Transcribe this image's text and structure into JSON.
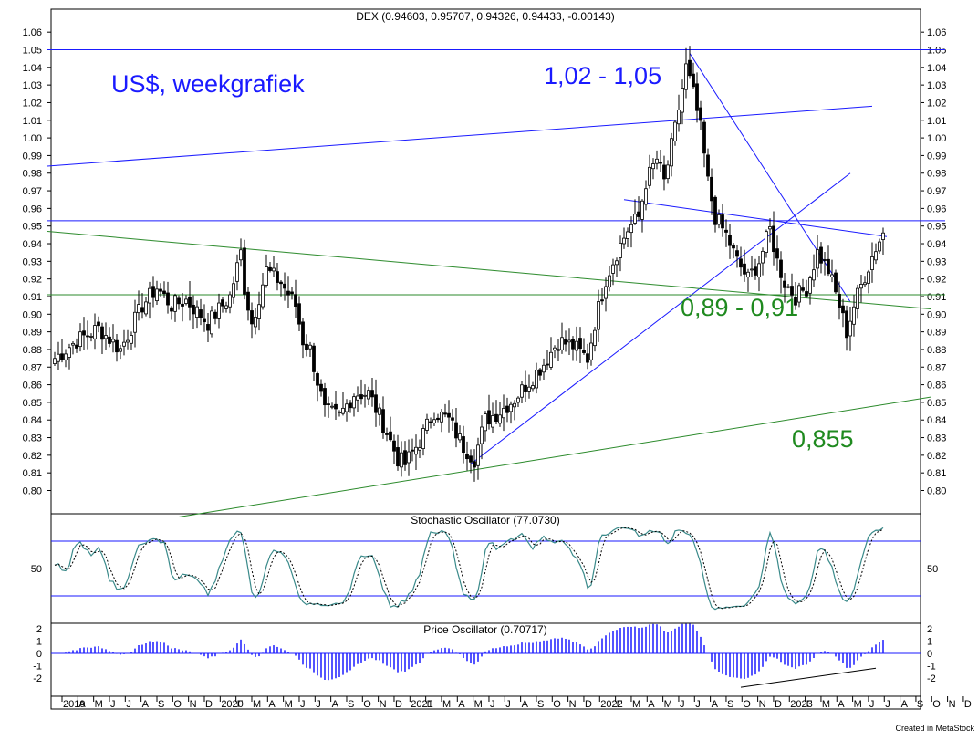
{
  "chart_data": {
    "type": "candlestick",
    "main": {
      "title": "DEX (0.94603, 0.95707, 0.94326, 0.94433, -0.00143)",
      "ylim": [
        0.785,
        1.065
      ],
      "yticks": [
        "1.06",
        "1.05",
        "1.04",
        "1.03",
        "1.02",
        "1.01",
        "1.00",
        "0.99",
        "0.98",
        "0.97",
        "0.96",
        "0.95",
        "0.94",
        "0.93",
        "0.92",
        "0.91",
        "0.90",
        "0.89",
        "0.88",
        "0.87",
        "0.86",
        "0.85",
        "0.84",
        "0.83",
        "0.82",
        "0.81",
        "0.80"
      ],
      "annotations": {
        "note": "US$, weekgrafiek",
        "top_target": "1,02 - 1,05",
        "support_zone": "0,89 - 0,91",
        "low_target": "0,855"
      },
      "weekly_close_anchors": [
        [
          0,
          0.875
        ],
        [
          6,
          0.885
        ],
        [
          12,
          0.892
        ],
        [
          18,
          0.88
        ],
        [
          24,
          0.905
        ],
        [
          28,
          0.915
        ],
        [
          32,
          0.905
        ],
        [
          36,
          0.908
        ],
        [
          42,
          0.895
        ],
        [
          48,
          0.91
        ],
        [
          51,
          0.935
        ],
        [
          52,
          0.915
        ],
        [
          54,
          0.895
        ],
        [
          58,
          0.925
        ],
        [
          62,
          0.918
        ],
        [
          66,
          0.905
        ],
        [
          68,
          0.885
        ],
        [
          70,
          0.88
        ],
        [
          72,
          0.862
        ],
        [
          74,
          0.845
        ],
        [
          78,
          0.842
        ],
        [
          82,
          0.855
        ],
        [
          86,
          0.855
        ],
        [
          90,
          0.838
        ],
        [
          94,
          0.818
        ],
        [
          96,
          0.815
        ],
        [
          100,
          0.828
        ],
        [
          104,
          0.845
        ],
        [
          108,
          0.84
        ],
        [
          112,
          0.825
        ],
        [
          115,
          0.818
        ],
        [
          118,
          0.84
        ],
        [
          122,
          0.845
        ],
        [
          126,
          0.852
        ],
        [
          130,
          0.862
        ],
        [
          134,
          0.872
        ],
        [
          138,
          0.885
        ],
        [
          142,
          0.882
        ],
        [
          146,
          0.875
        ],
        [
          148,
          0.895
        ],
        [
          151,
          0.92
        ],
        [
          154,
          0.935
        ],
        [
          157,
          0.948
        ],
        [
          160,
          0.955
        ],
        [
          162,
          0.975
        ],
        [
          165,
          0.988
        ],
        [
          167,
          0.975
        ],
        [
          170,
          1.005
        ],
        [
          173,
          1.04
        ],
        [
          175,
          1.025
        ],
        [
          177,
          1.005
        ],
        [
          179,
          0.975
        ],
        [
          181,
          0.955
        ],
        [
          184,
          0.945
        ],
        [
          187,
          0.93
        ],
        [
          190,
          0.92
        ],
        [
          193,
          0.93
        ],
        [
          196,
          0.948
        ],
        [
          198,
          0.93
        ],
        [
          200,
          0.918
        ],
        [
          203,
          0.91
        ],
        [
          206,
          0.915
        ],
        [
          209,
          0.935
        ],
        [
          212,
          0.925
        ],
        [
          215,
          0.905
        ],
        [
          217,
          0.89
        ],
        [
          219,
          0.905
        ],
        [
          222,
          0.922
        ],
        [
          225,
          0.938
        ],
        [
          227,
          0.946
        ]
      ],
      "lines": [
        {
          "name": "blue-channel-top",
          "color": "#1a1aff",
          "from": [
            -2,
            0.984
          ],
          "to": [
            224,
            1.018
          ]
        },
        {
          "name": "resistance-1050",
          "color": "#1a1aff",
          "from": [
            -2,
            1.05
          ],
          "to": [
            244,
            1.05
          ]
        },
        {
          "name": "resistance-953",
          "color": "#1a1aff",
          "from": [
            -2,
            0.953
          ],
          "to": [
            244,
            0.953
          ]
        },
        {
          "name": "blue-trend-up",
          "color": "#1a1aff",
          "from": [
            114,
            0.815
          ],
          "to": [
            218,
            0.98
          ]
        },
        {
          "name": "blue-trend-down",
          "color": "#1a1aff",
          "from": [
            174,
            1.048
          ],
          "to": [
            218,
            0.907
          ]
        },
        {
          "name": "blue-descending",
          "color": "#1a1aff",
          "from": [
            156,
            0.965
          ],
          "to": [
            228,
            0.944
          ]
        },
        {
          "name": "green-support-910",
          "color": "#2b8a2b",
          "from": [
            -2,
            0.911
          ],
          "to": [
            244,
            0.911
          ]
        },
        {
          "name": "green-descending",
          "color": "#2b8a2b",
          "from": [
            -2,
            0.947
          ],
          "to": [
            240,
            0.903
          ]
        },
        {
          "name": "green-ascending",
          "color": "#2b8a2b",
          "from": [
            34,
            0.785
          ],
          "to": [
            240,
            0.853
          ]
        }
      ]
    },
    "stochastic": {
      "title": "Stochastic Oscillator (77.0730)",
      "ylabel_tick": "50",
      "levels": [
        80,
        20
      ]
    },
    "price_osc": {
      "title": "Price Oscillator (0.70717)",
      "yticks": [
        "2",
        "1",
        "0",
        "-1",
        "-2"
      ]
    },
    "x_axis": {
      "labels": [
        "2019",
        "A",
        "M",
        "J",
        "J",
        "A",
        "S",
        "O",
        "N",
        "D",
        "2020",
        "F",
        "M",
        "A",
        "M",
        "J",
        "J",
        "A",
        "S",
        "O",
        "N",
        "D",
        "2021",
        "F",
        "M",
        "A",
        "M",
        "J",
        "J",
        "A",
        "S",
        "O",
        "N",
        "D",
        "2022",
        "F",
        "M",
        "A",
        "M",
        "J",
        "J",
        "A",
        "S",
        "O",
        "N",
        "D",
        "2023",
        "F",
        "M",
        "A",
        "M",
        "J",
        "J",
        "A",
        "S",
        "O",
        "N",
        "D"
      ],
      "first_label_week": 2,
      "label_spacing_weeks": 4.333
    },
    "footer": "Created in MetaStock"
  }
}
